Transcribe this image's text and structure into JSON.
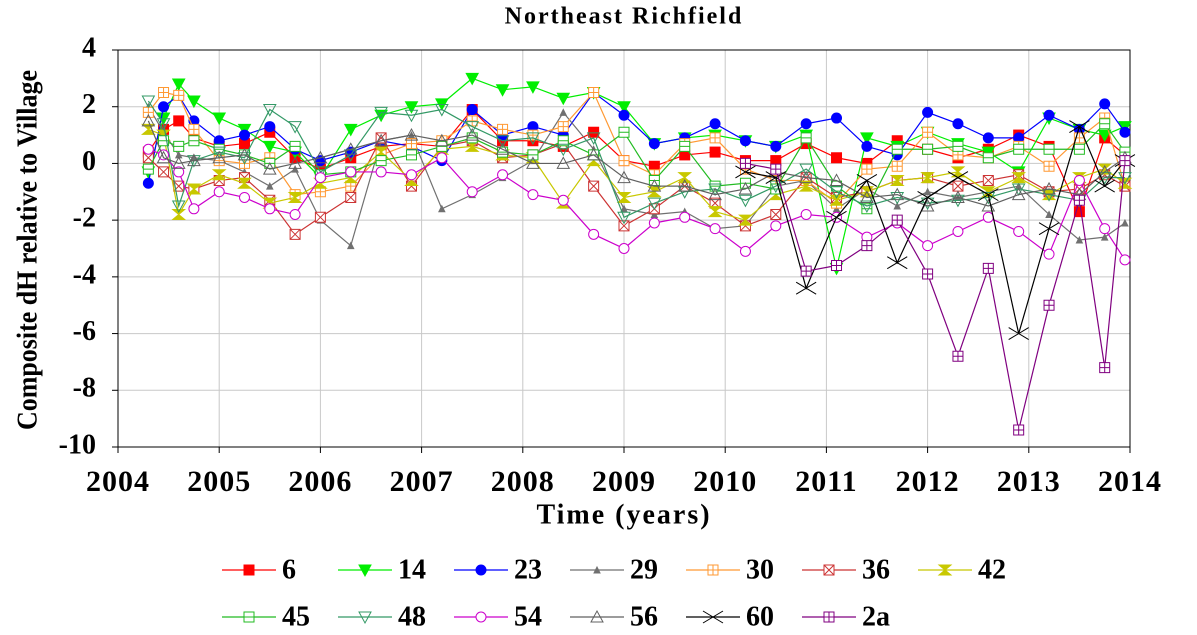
{
  "chart_data": {
    "type": "line",
    "title": "Northeast Richfield",
    "x_label": "Time (years)",
    "y_label": "Composite dH relative to Village",
    "x": [
      2004.3,
      2004.45,
      2004.6,
      2004.75,
      2005.0,
      2005.25,
      2005.5,
      2005.75,
      2006.0,
      2006.3,
      2006.6,
      2006.9,
      2007.2,
      2007.5,
      2007.8,
      2008.1,
      2008.4,
      2008.7,
      2009.0,
      2009.3,
      2009.6,
      2009.9,
      2010.2,
      2010.5,
      2010.8,
      2011.1,
      2011.4,
      2011.7,
      2012.0,
      2012.3,
      2012.6,
      2012.9,
      2013.2,
      2013.5,
      2013.75,
      2013.95
    ],
    "xlim": [
      2004,
      2014
    ],
    "xticks": [
      2004,
      2005,
      2006,
      2007,
      2008,
      2009,
      2010,
      2011,
      2012,
      2013,
      2014
    ],
    "ylim": [
      -10,
      4
    ],
    "yticks": [
      -10,
      -8,
      -6,
      -4,
      -2,
      0,
      2,
      4
    ],
    "grid": true,
    "series": [
      {
        "name": "6",
        "color": "#ff0000",
        "marker": "square",
        "values": [
          0.4,
          1.2,
          1.5,
          0.9,
          0.6,
          0.7,
          1.1,
          0.2,
          -0.2,
          0.2,
          0.6,
          0.7,
          0.6,
          1.9,
          0.8,
          0.8,
          0.6,
          1.1,
          0.1,
          -0.1,
          0.3,
          0.4,
          0.1,
          0.1,
          0.7,
          0.2,
          0,
          0.8,
          0.5,
          0.2,
          0.5,
          1.0,
          0.6,
          -1.7,
          0.9,
          0.3
        ]
      },
      {
        "name": "14",
        "color": "#00ee00",
        "marker": "triangle-down",
        "values": [
          -0.3,
          1.6,
          2.8,
          2.2,
          1.6,
          1.2,
          0.6,
          0.4,
          -0.5,
          1.2,
          1.7,
          2.0,
          2.1,
          3.0,
          2.6,
          2.7,
          2.3,
          2.5,
          2.0,
          0.7,
          0.9,
          1.0,
          0.8,
          0.6,
          1.0,
          -3.7,
          0.9,
          0.6,
          1.1,
          0.7,
          0.4,
          -0.3,
          1.6,
          1.2,
          1.0,
          1.3
        ]
      },
      {
        "name": "23",
        "color": "#0000ff",
        "marker": "circle",
        "values": [
          -0.7,
          2.0,
          2.4,
          1.5,
          0.8,
          1.0,
          1.3,
          0.5,
          0.1,
          0.4,
          0.8,
          0.6,
          0.1,
          1.9,
          1.0,
          1.3,
          1.0,
          2.5,
          1.7,
          0.7,
          0.9,
          1.4,
          0.8,
          0.6,
          1.4,
          1.6,
          0.6,
          0.3,
          1.8,
          1.4,
          0.9,
          0.9,
          1.7,
          1.2,
          2.1,
          1.1
        ]
      },
      {
        "name": "29",
        "color": "#707070",
        "marker": "triangle-small",
        "values": [
          2.0,
          1.1,
          0.3,
          0.2,
          0.1,
          -0.3,
          -0.8,
          -0.2,
          -2.0,
          -2.9,
          0.8,
          1.0,
          -1.6,
          -1.1,
          -0.5,
          0.1,
          1.8,
          0.5,
          -1.6,
          -1.8,
          -1.7,
          -2.3,
          -2.2,
          -0.8,
          -0.6,
          -1.6,
          -0.9,
          -1.5,
          -1.0,
          -1.2,
          -1.0,
          -0.8,
          -1.8,
          -2.7,
          -2.6,
          -2.1
        ]
      },
      {
        "name": "30",
        "color": "#ff9933",
        "marker": "square-plus",
        "values": [
          1.8,
          2.5,
          2.4,
          1.2,
          0.1,
          0.0,
          0.2,
          -1.1,
          -1.0,
          -0.8,
          0.3,
          0.7,
          0.8,
          1.5,
          1.2,
          1.0,
          1.3,
          2.5,
          0.1,
          -0.4,
          0.7,
          0.9,
          -0.2,
          -0.6,
          -0.6,
          -1.4,
          -0.2,
          -0.1,
          1.1,
          0.3,
          0.2,
          0.6,
          -0.1,
          0.9,
          1.6,
          -0.8
        ]
      },
      {
        "name": "36",
        "color": "#cc3333",
        "marker": "square-x",
        "values": [
          0.2,
          -0.3,
          -0.8,
          -0.9,
          -0.6,
          -0.5,
          -1.3,
          -2.5,
          -1.9,
          -1.2,
          0.9,
          -0.8,
          0.6,
          0.8,
          0.2,
          0.3,
          0.7,
          -0.8,
          -2.2,
          -1.6,
          -0.8,
          -1.4,
          -2.2,
          -1.8,
          -0.5,
          -1.2,
          -1.0,
          -0.6,
          -0.5,
          -0.8,
          -0.6,
          -0.4,
          -1.0,
          -0.9,
          -0.4,
          -0.8
        ]
      },
      {
        "name": "42",
        "color": "#c8c800",
        "marker": "hourglass",
        "values": [
          1.2,
          1.0,
          -1.8,
          -0.9,
          -0.4,
          -0.7,
          -1.4,
          -1.2,
          -0.7,
          -0.5,
          0.4,
          -0.6,
          0.5,
          0.6,
          0.3,
          0.2,
          -1.4,
          0.1,
          -1.2,
          -1.0,
          -0.5,
          -1.7,
          -2.0,
          -1.1,
          -0.8,
          -1.3,
          -1.0,
          -0.6,
          -0.5,
          -0.3,
          -1.0,
          -0.5,
          -1.1,
          -0.5,
          -0.2,
          -0.7
        ]
      },
      {
        "name": "45",
        "color": "#22bb22",
        "marker": "square-minus",
        "values": [
          -0.2,
          0.8,
          0.6,
          0.8,
          0.5,
          0.3,
          0.0,
          0.6,
          -0.4,
          -0.3,
          0.1,
          0.3,
          0.6,
          0.9,
          0.4,
          0.3,
          0.8,
          0.3,
          1.1,
          -0.6,
          0.6,
          -0.8,
          -0.7,
          -0.9,
          0.9,
          -0.8,
          -1.6,
          0.5,
          0.5,
          0.6,
          0.2,
          0.5,
          0.5,
          0.5,
          1.4,
          0.4
        ]
      },
      {
        "name": "48",
        "color": "#339966",
        "marker": "triangle-down-open",
        "values": [
          2.2,
          1.4,
          -1.5,
          0.1,
          0.4,
          0.2,
          1.9,
          1.3,
          -0.3,
          0.3,
          1.8,
          1.7,
          1.9,
          1.3,
          0.8,
          0.9,
          0.5,
          0.9,
          -1.9,
          -1.4,
          -1.0,
          -0.9,
          -1.3,
          -0.8,
          -0.2,
          -1.0,
          -1.5,
          -1.2,
          -1.4,
          -1.3,
          -1.2,
          -0.9,
          -1.1,
          -1.3,
          -0.5,
          -0.5
        ]
      },
      {
        "name": "54",
        "color": "#cc00cc",
        "marker": "circle-open",
        "values": [
          0.5,
          0.3,
          -0.3,
          -1.6,
          -1.0,
          -1.2,
          -1.6,
          -1.8,
          -0.5,
          -0.3,
          -0.3,
          -0.4,
          0.2,
          -1.0,
          -0.4,
          -1.1,
          -1.3,
          -2.5,
          -3.0,
          -2.1,
          -1.9,
          -2.3,
          -3.1,
          -2.2,
          -1.8,
          -1.9,
          -2.6,
          -2.1,
          -2.9,
          -2.4,
          -1.9,
          -2.4,
          -3.2,
          -0.6,
          -2.3,
          -3.4
        ]
      },
      {
        "name": "56",
        "color": "#606060",
        "marker": "triangle-open",
        "values": [
          1.5,
          0.2,
          0.0,
          0.1,
          0.2,
          0.3,
          -0.2,
          0.0,
          0.2,
          0.5,
          0.8,
          1.0,
          0.8,
          1.0,
          0.5,
          0.0,
          0.0,
          0.3,
          -0.5,
          -0.8,
          -0.8,
          -1.1,
          -0.9,
          -0.3,
          -0.5,
          -0.6,
          -1.2,
          -1.1,
          -1.5,
          -1.2,
          -1.5,
          -1.1,
          -0.9,
          -1.1,
          -0.3,
          0.2
        ]
      },
      {
        "name": "60",
        "color": "#000000",
        "marker": "x",
        "values": [
          null,
          null,
          null,
          null,
          null,
          null,
          null,
          null,
          null,
          null,
          null,
          null,
          null,
          null,
          null,
          null,
          null,
          null,
          null,
          null,
          null,
          null,
          -0.3,
          -0.5,
          -4.4,
          -1.9,
          -0.6,
          -3.5,
          -1.2,
          -0.5,
          -1.1,
          -6.0,
          -2.3,
          1.3,
          -0.8,
          0.1
        ]
      },
      {
        "name": "2a",
        "color": "#800080",
        "marker": "square-plus",
        "values": [
          null,
          null,
          null,
          null,
          null,
          null,
          null,
          null,
          null,
          null,
          null,
          null,
          null,
          null,
          null,
          null,
          null,
          null,
          null,
          null,
          null,
          null,
          0.0,
          -0.2,
          -3.8,
          -3.6,
          -2.9,
          -2.0,
          -3.9,
          -6.8,
          -3.7,
          -9.4,
          -5.0,
          -1.3,
          -7.2,
          0.1
        ]
      }
    ]
  }
}
